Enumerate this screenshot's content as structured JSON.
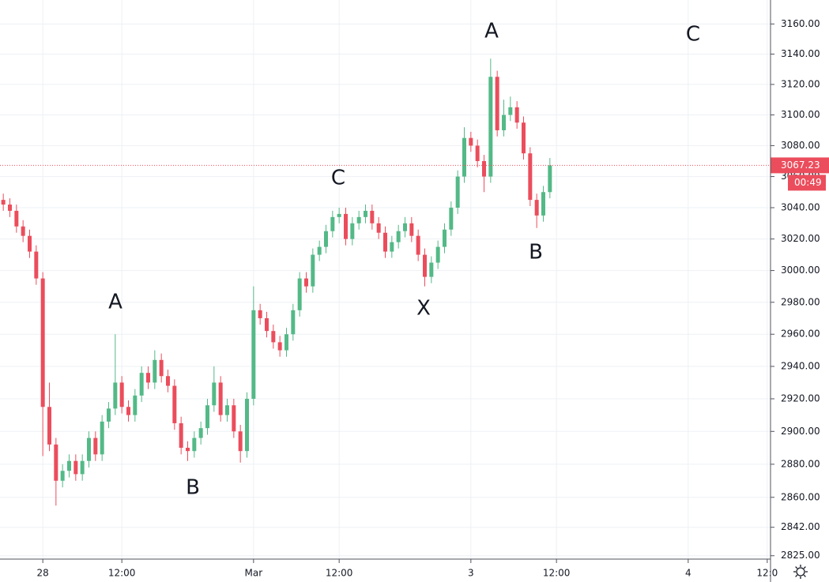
{
  "chart_data": {
    "type": "candlestick",
    "log": true,
    "grid": true,
    "up_color": "#53b987",
    "down_color": "#eb4d5c",
    "open": [
      3045,
      3042,
      3038,
      3028,
      3022,
      3012,
      2995,
      2915,
      2892,
      2870,
      2876,
      2882,
      2874,
      2882,
      2896,
      2886,
      2906,
      2914,
      2930,
      2915,
      2910,
      2922,
      2936,
      2930,
      2944,
      2934,
      2928,
      2905,
      2890,
      2888,
      2896,
      2902,
      2916,
      2930,
      2910,
      2916,
      2900,
      2888,
      2920,
      2975,
      2970,
      2962,
      2955,
      2950,
      2960,
      2975,
      2995,
      2990,
      3010,
      3015,
      3025,
      3034,
      3036,
      3020,
      3030,
      3034,
      3038,
      3030,
      3024,
      3012,
      3018,
      3025,
      3030,
      3022,
      3010,
      2996,
      3005,
      3015,
      3026,
      3040,
      3060,
      3085,
      3080,
      3070,
      3060,
      3125,
      3090,
      3100,
      3105,
      3095,
      3075,
      3045,
      3035,
      3050
    ],
    "high": [
      3049,
      3046,
      3042,
      3032,
      3026,
      3016,
      2999,
      2930,
      2896,
      2880,
      2886,
      2886,
      2886,
      2900,
      2900,
      2910,
      2918,
      2960,
      2934,
      2919,
      2926,
      2940,
      2940,
      2950,
      2948,
      2938,
      2932,
      2909,
      2894,
      2900,
      2906,
      2920,
      2940,
      2934,
      2920,
      2920,
      2904,
      2924,
      2990,
      2979,
      2974,
      2966,
      2959,
      2964,
      2979,
      2999,
      2999,
      3014,
      3019,
      3029,
      3038,
      3040,
      3040,
      3034,
      3038,
      3042,
      3042,
      3034,
      3028,
      3022,
      3029,
      3034,
      3034,
      3026,
      3014,
      3009,
      3019,
      3030,
      3044,
      3064,
      3092,
      3089,
      3084,
      3074,
      3137,
      3129,
      3110,
      3112,
      3109,
      3099,
      3079,
      3049,
      3054,
      3072
    ],
    "low": [
      3038,
      3034,
      3024,
      3018,
      3008,
      2991,
      2885,
      2888,
      2855,
      2866,
      2872,
      2870,
      2870,
      2878,
      2882,
      2882,
      2902,
      2910,
      2911,
      2906,
      2906,
      2918,
      2926,
      2926,
      2930,
      2924,
      2901,
      2886,
      2882,
      2884,
      2892,
      2898,
      2912,
      2906,
      2906,
      2896,
      2881,
      2884,
      2916,
      2966,
      2958,
      2951,
      2946,
      2946,
      2956,
      2971,
      2986,
      2986,
      3006,
      3011,
      3021,
      3030,
      3016,
      3016,
      3026,
      3030,
      3026,
      3020,
      3008,
      3008,
      3014,
      3021,
      3018,
      3006,
      2990,
      2992,
      3001,
      3011,
      3022,
      3036,
      3056,
      3076,
      3066,
      3050,
      3056,
      3086,
      3086,
      3096,
      3091,
      3071,
      3041,
      3027,
      3031,
      3046
    ],
    "close": [
      3042,
      3038,
      3028,
      3022,
      3012,
      2995,
      2915,
      2892,
      2870,
      2876,
      2882,
      2874,
      2882,
      2896,
      2886,
      2906,
      2914,
      2930,
      2915,
      2910,
      2922,
      2936,
      2930,
      2944,
      2934,
      2928,
      2905,
      2890,
      2888,
      2896,
      2902,
      2916,
      2930,
      2910,
      2916,
      2900,
      2888,
      2920,
      2975,
      2970,
      2962,
      2955,
      2950,
      2960,
      2975,
      2995,
      2990,
      3010,
      3015,
      3025,
      3034,
      3036,
      3020,
      3030,
      3034,
      3038,
      3030,
      3024,
      3012,
      3018,
      3025,
      3030,
      3022,
      3010,
      2996,
      3005,
      3015,
      3026,
      3040,
      3060,
      3085,
      3080,
      3070,
      3060,
      3125,
      3090,
      3100,
      3105,
      3095,
      3075,
      3045,
      3035,
      3050,
      3067.23
    ],
    "ylim": [
      2823,
      3176
    ],
    "yticks": [
      {
        "value": 2825,
        "label": "2825.00"
      },
      {
        "value": 2842,
        "label": "2842.00"
      },
      {
        "value": 2860,
        "label": "2860.00"
      },
      {
        "value": 2880,
        "label": "2880.00"
      },
      {
        "value": 2900,
        "label": "2900.00"
      },
      {
        "value": 2920,
        "label": "2920.00"
      },
      {
        "value": 2940,
        "label": "2940.00"
      },
      {
        "value": 2960,
        "label": "2960.00"
      },
      {
        "value": 2980,
        "label": "2980.00"
      },
      {
        "value": 3000,
        "label": "3000.00"
      },
      {
        "value": 3020,
        "label": "3020.00"
      },
      {
        "value": 3040,
        "label": "3040.00"
      },
      {
        "value": 3060,
        "label": "3060.00"
      },
      {
        "value": 3080,
        "label": "3080.00"
      },
      {
        "value": 3100,
        "label": "3100.00"
      },
      {
        "value": 3120,
        "label": "3120.00"
      },
      {
        "value": 3140,
        "label": "3140.00"
      },
      {
        "value": 3160,
        "label": "3160.00"
      }
    ],
    "xlim": [
      0,
      117
    ],
    "xticks": [
      {
        "value": 6,
        "label": "28"
      },
      {
        "value": 18,
        "label": "12:00"
      },
      {
        "value": 38,
        "label": "Mar"
      },
      {
        "value": 51,
        "label": "12:00"
      },
      {
        "value": 71,
        "label": "3"
      },
      {
        "value": 84,
        "label": "12:00"
      },
      {
        "value": 104,
        "label": "4"
      },
      {
        "value": 116,
        "label": "12:0"
      }
    ],
    "countdown": "00:49",
    "annotations": [
      "A",
      "B",
      "C",
      "X",
      "A",
      "B",
      "C"
    ]
  }
}
